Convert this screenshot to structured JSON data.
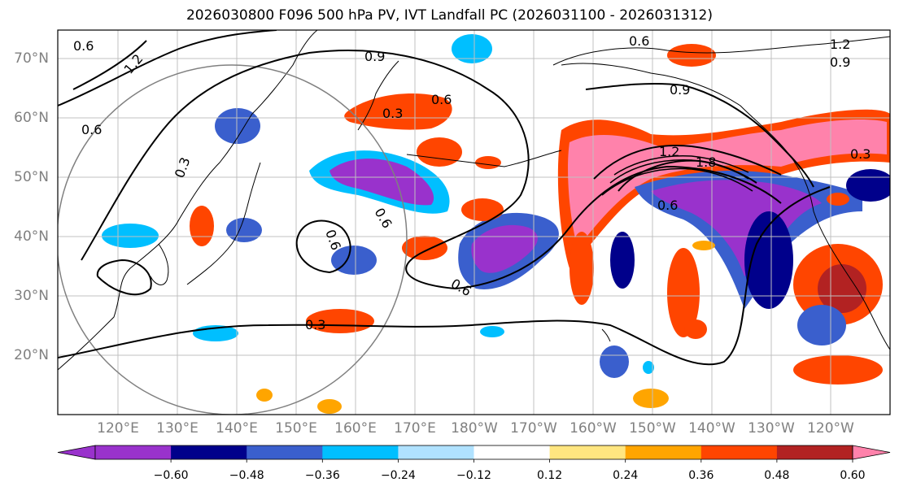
{
  "title": "2026030800 F096 500 hPa PV, IVT Landfall PC (2026031100 - 2026031312)",
  "map": {
    "lat_labels": [
      "70°N",
      "60°N",
      "50°N",
      "40°N",
      "30°N",
      "20°N"
    ],
    "lon_labels": [
      "120°E",
      "130°E",
      "140°E",
      "150°E",
      "160°E",
      "170°E",
      "180°W",
      "170°W",
      "160°W",
      "150°W",
      "140°W",
      "130°W",
      "120°W"
    ],
    "contour_labels": [
      "0.6",
      "1.2",
      "0.9",
      "0.3",
      "0.6",
      "0.3",
      "0.6",
      "0.6",
      "0.6",
      "0.3",
      "0.6",
      "0.9",
      "1.2",
      "1.8",
      "0.6",
      "0.3",
      "1.2",
      "0.9",
      "0.6"
    ],
    "colors": {
      "land_line": "#000000",
      "grid": "#c0c0c0",
      "circle": "#808080"
    }
  },
  "colorbar": {
    "ticks": [
      "−0.60",
      "−0.48",
      "−0.36",
      "−0.24",
      "−0.12",
      "0.12",
      "0.24",
      "0.36",
      "0.48",
      "0.60"
    ],
    "colors": [
      "#9932cc",
      "#00008b",
      "#3a5fcd",
      "#00bfff",
      "#b0e2ff",
      "#ffffff",
      "#ffe680",
      "#ffa500",
      "#ff4500",
      "#b22222",
      "#ff82ab"
    ]
  }
}
